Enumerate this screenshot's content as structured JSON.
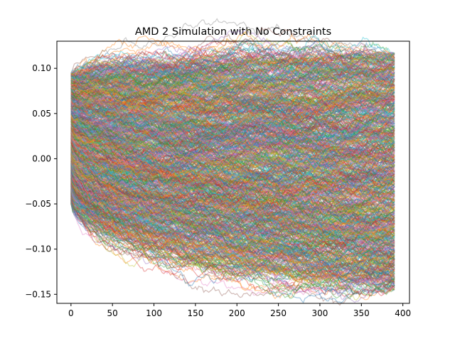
{
  "chart_data": {
    "type": "line",
    "title": "AMD 2 Simulation with No Constraints",
    "xlabel": "",
    "ylabel": "",
    "xlim": [
      -17,
      408
    ],
    "ylim": [
      -0.16,
      0.13
    ],
    "xticks": [
      0,
      50,
      100,
      150,
      200,
      250,
      300,
      350,
      400
    ],
    "yticks": [
      -0.15,
      -0.1,
      -0.05,
      0.0,
      0.05,
      0.1
    ],
    "xtick_labels": [
      "0",
      "50",
      "100",
      "150",
      "200",
      "250",
      "300",
      "350",
      "400"
    ],
    "ytick_labels": [
      "−0.15",
      "−0.10",
      "−0.05",
      "0.00",
      "0.05",
      "0.10"
    ],
    "grid": false,
    "legend": "none",
    "num_series_approx": 1000,
    "steps_per_series": 391,
    "series_alpha": 0.4,
    "start_range": [
      -0.05,
      0.095
    ],
    "end_range": [
      -0.145,
      0.117
    ],
    "palette": [
      "#1f77b4",
      "#ff7f0e",
      "#2ca02c",
      "#d62728",
      "#9467bd",
      "#8c564b",
      "#e377c2",
      "#7f7f7f",
      "#bcbd22",
      "#17becf"
    ]
  }
}
